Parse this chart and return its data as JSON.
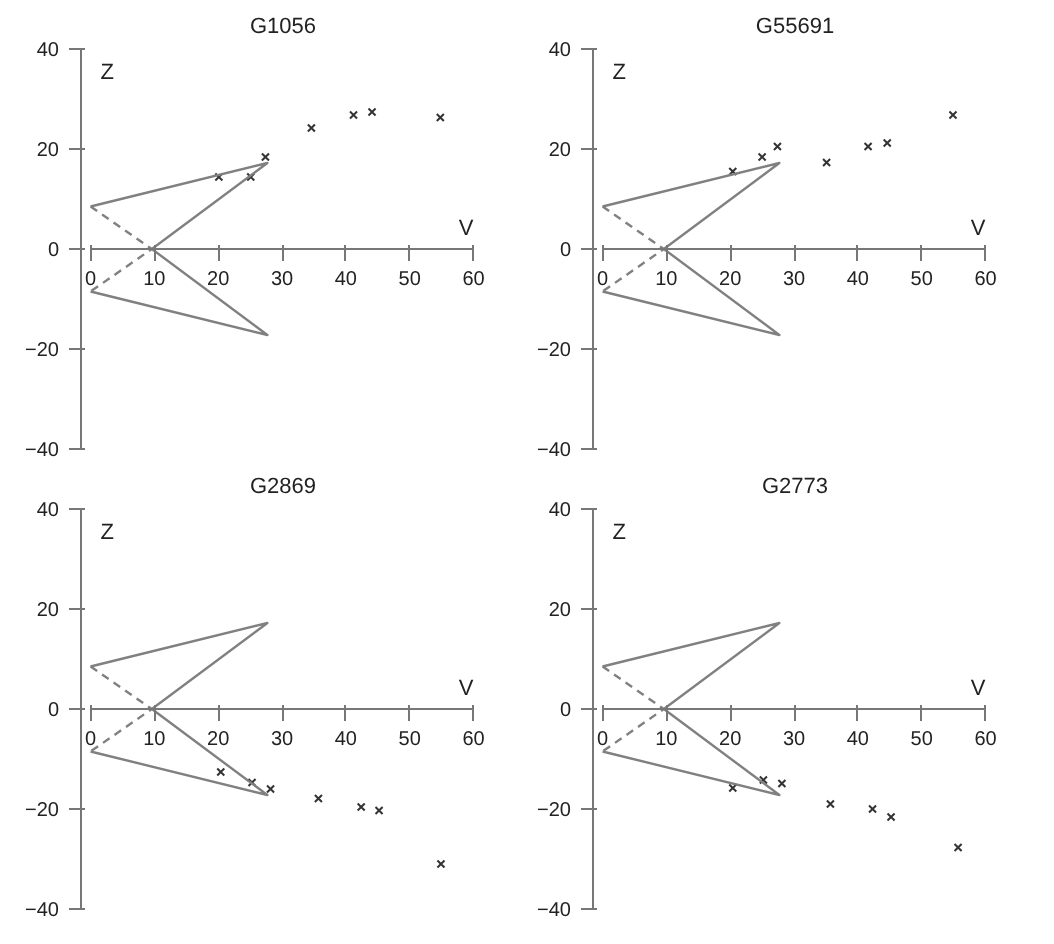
{
  "chart_data": [
    {
      "type": "scatter",
      "title": "G1056",
      "xlabel": "V",
      "ylabel": "Z",
      "xlim": [
        0,
        60
      ],
      "ylim": [
        -40,
        40
      ],
      "xticks": [
        0,
        10,
        20,
        30,
        40,
        50,
        60
      ],
      "yticks": [
        -40,
        -20,
        0,
        20,
        40
      ],
      "series": [
        {
          "marker": "cross",
          "color": "#333333",
          "x": [
            20.1,
            25.1,
            27.4,
            34.6,
            41.2,
            44.1,
            54.8
          ],
          "values": [
            14.4,
            14.4,
            18.4,
            24.2,
            26.8,
            27.4,
            26.3
          ]
        },
        {
          "type": "line",
          "color": "#808080",
          "line_style": "solid",
          "x": [
            0,
            27.7,
            9.6,
            27.7,
            0
          ],
          "values": [
            8.5,
            17.2,
            0,
            -17.2,
            -8.5
          ]
        },
        {
          "type": "line",
          "color": "#808080",
          "line_style": "dashed",
          "x": [
            0,
            9.6,
            0
          ],
          "values": [
            8.5,
            0,
            -8.5
          ]
        }
      ]
    },
    {
      "type": "scatter",
      "title": "G55691",
      "xlabel": "V",
      "ylabel": "Z",
      "xlim": [
        0,
        60
      ],
      "ylim": [
        -40,
        40
      ],
      "xticks": [
        0,
        10,
        20,
        30,
        40,
        50,
        60
      ],
      "yticks": [
        -40,
        -20,
        0,
        20,
        40
      ],
      "series": [
        {
          "marker": "cross",
          "color": "#333333",
          "x": [
            20.4,
            25.0,
            27.4,
            35.1,
            41.6,
            44.6,
            54.9
          ],
          "values": [
            15.5,
            18.4,
            20.5,
            17.3,
            20.5,
            21.2,
            26.8
          ]
        },
        {
          "type": "line",
          "color": "#808080",
          "line_style": "solid",
          "x": [
            0,
            27.7,
            9.6,
            27.7,
            0
          ],
          "values": [
            8.5,
            17.2,
            0,
            -17.2,
            -8.5
          ]
        },
        {
          "type": "line",
          "color": "#808080",
          "line_style": "dashed",
          "x": [
            0,
            9.6,
            0
          ],
          "values": [
            8.5,
            0,
            -8.5
          ]
        }
      ]
    },
    {
      "type": "scatter",
      "title": "G2869",
      "xlabel": "V",
      "ylabel": "Z",
      "xlim": [
        0,
        60
      ],
      "ylim": [
        -40,
        40
      ],
      "xticks": [
        0,
        10,
        20,
        30,
        40,
        50,
        60
      ],
      "yticks": [
        -40,
        -20,
        0,
        20,
        40
      ],
      "series": [
        {
          "marker": "cross",
          "color": "#333333",
          "x": [
            20.4,
            25.3,
            28.2,
            35.7,
            42.4,
            45.2,
            54.9
          ],
          "values": [
            -12.6,
            -14.7,
            -16.0,
            -17.9,
            -19.6,
            -20.3,
            -31.0
          ]
        },
        {
          "type": "line",
          "color": "#808080",
          "line_style": "solid",
          "x": [
            0,
            27.7,
            9.6,
            27.7,
            0
          ],
          "values": [
            8.5,
            17.2,
            0,
            -17.2,
            -8.5
          ]
        },
        {
          "type": "line",
          "color": "#808080",
          "line_style": "dashed",
          "x": [
            0,
            9.6,
            0
          ],
          "values": [
            8.5,
            0,
            -8.5
          ]
        }
      ]
    },
    {
      "type": "scatter",
      "title": "G2773",
      "xlabel": "V",
      "ylabel": "Z",
      "xlim": [
        0,
        60
      ],
      "ylim": [
        -40,
        40
      ],
      "xticks": [
        0,
        10,
        20,
        30,
        40,
        50,
        60
      ],
      "yticks": [
        -40,
        -20,
        0,
        20,
        40
      ],
      "series": [
        {
          "marker": "cross",
          "color": "#333333",
          "x": [
            20.4,
            25.2,
            28.1,
            35.7,
            42.3,
            45.2,
            55.7
          ],
          "values": [
            -15.8,
            -14.2,
            -14.9,
            -19.0,
            -20.0,
            -21.6,
            -27.7
          ]
        },
        {
          "type": "line",
          "color": "#808080",
          "line_style": "solid",
          "x": [
            0,
            27.7,
            9.6,
            27.7,
            0
          ],
          "values": [
            8.5,
            17.2,
            0,
            -17.2,
            -8.5
          ]
        },
        {
          "type": "line",
          "color": "#808080",
          "line_style": "dashed",
          "x": [
            0,
            9.6,
            0
          ],
          "values": [
            8.5,
            0,
            -8.5
          ]
        }
      ]
    }
  ]
}
